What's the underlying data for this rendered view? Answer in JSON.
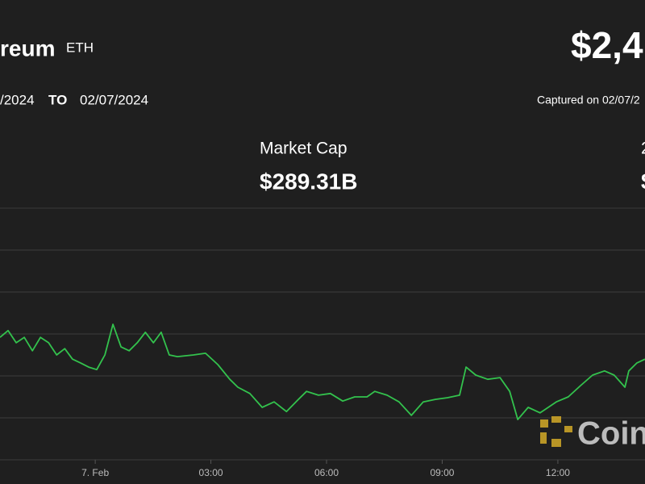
{
  "header": {
    "name": "reum",
    "symbol": "ETH",
    "price": "$2,4"
  },
  "range": {
    "from": "/2024",
    "to_label": "TO",
    "to": "02/07/2024",
    "captured": "Captured on 02/07/2"
  },
  "stats": [
    {
      "label": "Market Cap",
      "value": "$289.31B"
    },
    {
      "label": "2",
      "value": "$"
    }
  ],
  "watermark": "Coin",
  "chart_data": {
    "type": "line",
    "color": "#33c24d",
    "grid": true,
    "x": [
      -2.47,
      -2.26,
      -2.05,
      -1.84,
      -1.63,
      -1.42,
      -1.21,
      -1.0,
      -0.79,
      -0.59,
      -0.38,
      -0.17,
      0.04,
      0.25,
      0.46,
      0.67,
      0.88,
      1.09,
      1.3,
      1.51,
      1.71,
      1.92,
      2.13,
      2.55,
      2.86,
      3.18,
      3.49,
      3.7,
      4.01,
      4.33,
      4.64,
      4.96,
      5.27,
      5.48,
      5.79,
      6.1,
      6.42,
      6.73,
      7.05,
      7.25,
      7.57,
      7.88,
      8.2,
      8.51,
      8.82,
      9.14,
      9.45,
      9.62,
      9.87,
      10.18,
      10.5,
      10.75,
      10.96,
      11.23,
      11.54,
      11.96,
      12.27,
      12.59,
      12.9,
      13.21,
      13.46,
      13.74,
      13.84,
      14.05,
      14.26
    ],
    "values": [
      2379.2,
      2380.8,
      2377.9,
      2379.2,
      2376.0,
      2379.2,
      2377.9,
      2375.0,
      2376.5,
      2374.0,
      2373.1,
      2372.1,
      2371.5,
      2375.0,
      2382.3,
      2376.9,
      2376.0,
      2377.9,
      2380.4,
      2377.9,
      2380.4,
      2375.0,
      2374.6,
      2375.0,
      2375.4,
      2372.7,
      2369.2,
      2367.3,
      2365.8,
      2362.5,
      2363.8,
      2361.5,
      2364.4,
      2366.3,
      2365.4,
      2365.8,
      2364.0,
      2365.0,
      2365.0,
      2366.3,
      2365.4,
      2363.8,
      2360.6,
      2363.8,
      2364.4,
      2364.8,
      2365.4,
      2372.1,
      2370.2,
      2369.2,
      2369.6,
      2366.3,
      2359.6,
      2362.5,
      2361.2,
      2363.8,
      2365.0,
      2367.7,
      2370.2,
      2371.2,
      2370.2,
      2367.3,
      2371.2,
      2373.1,
      2374.0
    ],
    "xlim": [
      -2.47,
      14.26
    ],
    "xticks": [
      {
        "value": 0,
        "label": "7. Feb"
      },
      {
        "value": 3,
        "label": "03:00"
      },
      {
        "value": 6,
        "label": "06:00"
      },
      {
        "value": 9,
        "label": "09:00"
      },
      {
        "value": 12,
        "label": "12:00"
      }
    ],
    "ylim": [
      2350,
      2410
    ],
    "yticks": [
      2350,
      2360,
      2370,
      2380,
      2390,
      2400
    ]
  }
}
